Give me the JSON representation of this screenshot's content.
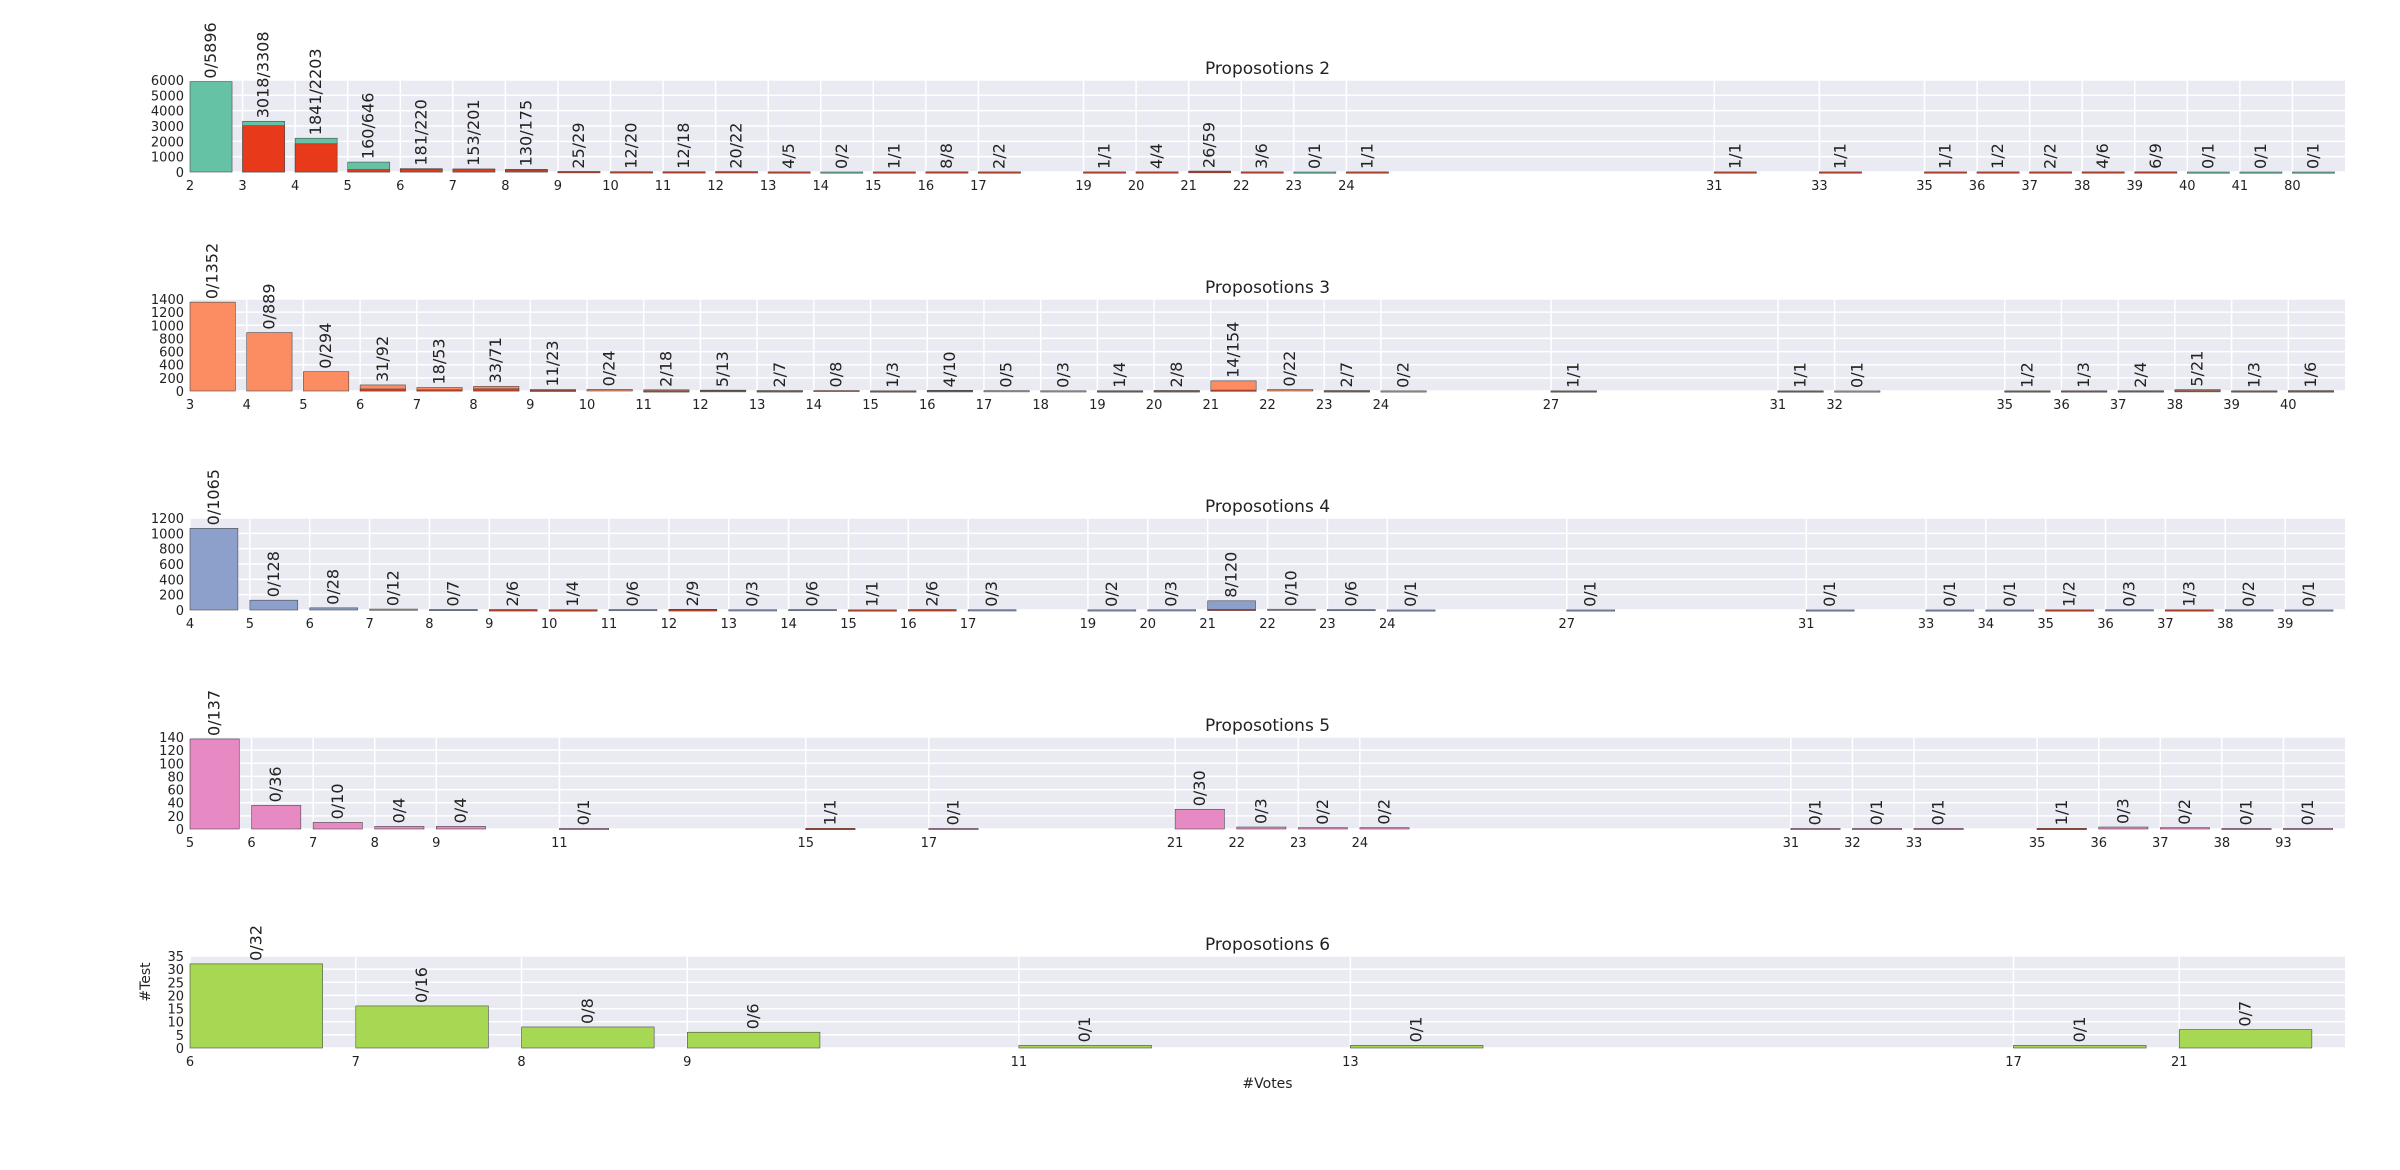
{
  "xlabel": "#Votes",
  "ylabel": "#Test",
  "chart_data": [
    {
      "type": "bar",
      "title": "Proposotions 2",
      "ylim": [
        0,
        6000
      ],
      "yticks": [
        0,
        1000,
        2000,
        3000,
        4000,
        5000,
        6000
      ],
      "grid": true,
      "color_total": "#66c2a5",
      "color_part": "#e8391a",
      "x": [
        2,
        3,
        4,
        5,
        6,
        7,
        8,
        9,
        10,
        11,
        12,
        13,
        14,
        15,
        16,
        17,
        19,
        20,
        21,
        22,
        23,
        24,
        31,
        33,
        35,
        36,
        37,
        38,
        39,
        40,
        41,
        80
      ],
      "part": [
        0,
        3018,
        1841,
        160,
        181,
        153,
        130,
        25,
        12,
        12,
        20,
        4,
        0,
        1,
        8,
        2,
        1,
        4,
        26,
        3,
        0,
        1,
        1,
        1,
        1,
        1,
        2,
        4,
        6,
        0,
        0,
        0
      ],
      "total": [
        5896,
        3308,
        2203,
        646,
        220,
        201,
        175,
        29,
        20,
        18,
        22,
        5,
        2,
        1,
        8,
        2,
        1,
        4,
        59,
        6,
        1,
        1,
        1,
        1,
        1,
        2,
        2,
        6,
        9,
        1,
        1,
        1
      ],
      "labels": [
        "0/5896",
        "3018/3308",
        "1841/2203",
        "160/646",
        "181/220",
        "153/201",
        "130/175",
        "25/29",
        "12/20",
        "12/18",
        "20/22",
        "4/5",
        "0/2",
        "1/1",
        "8/8",
        "2/2",
        "1/1",
        "4/4",
        "26/59",
        "3/6",
        "0/1",
        "1/1",
        "1/1",
        "1/1",
        "1/1",
        "1/2",
        "2/2",
        "4/6",
        "6/9",
        "0/1",
        "0/1",
        "0/1"
      ]
    },
    {
      "type": "bar",
      "title": "Proposotions 3",
      "ylim": [
        0,
        1400
      ],
      "yticks": [
        0,
        200,
        400,
        600,
        800,
        1000,
        1200,
        1400
      ],
      "grid": true,
      "color_total": "#fc8d62",
      "color_part": "#e8391a",
      "x": [
        3,
        4,
        5,
        6,
        7,
        8,
        9,
        10,
        11,
        12,
        13,
        14,
        15,
        16,
        17,
        18,
        19,
        20,
        21,
        22,
        23,
        24,
        27,
        31,
        32,
        35,
        36,
        37,
        38,
        39,
        40
      ],
      "part": [
        0,
        0,
        0,
        31,
        18,
        33,
        11,
        0,
        2,
        5,
        2,
        0,
        1,
        4,
        0,
        0,
        1,
        2,
        14,
        0,
        2,
        0,
        1,
        1,
        0,
        1,
        1,
        2,
        5,
        1,
        1
      ],
      "total": [
        1352,
        889,
        294,
        92,
        53,
        71,
        23,
        24,
        18,
        13,
        7,
        8,
        3,
        10,
        5,
        3,
        4,
        8,
        154,
        22,
        7,
        2,
        1,
        1,
        1,
        2,
        3,
        4,
        21,
        3,
        6
      ],
      "labels": [
        "0/1352",
        "0/889",
        "0/294",
        "31/92",
        "18/53",
        "33/71",
        "11/23",
        "0/24",
        "2/18",
        "5/13",
        "2/7",
        "0/8",
        "1/3",
        "4/10",
        "0/5",
        "0/3",
        "1/4",
        "2/8",
        "14/154",
        "0/22",
        "2/7",
        "0/2",
        "1/1",
        "1/1",
        "0/1",
        "1/2",
        "1/3",
        "2/4",
        "5/21",
        "1/3",
        "1/6"
      ]
    },
    {
      "type": "bar",
      "title": "Proposotions 4",
      "ylim": [
        0,
        1200
      ],
      "yticks": [
        0,
        200,
        400,
        600,
        800,
        1000,
        1200
      ],
      "grid": true,
      "color_total": "#8da0cb",
      "color_part": "#e8391a",
      "x": [
        4,
        5,
        6,
        7,
        8,
        9,
        10,
        11,
        12,
        13,
        14,
        15,
        16,
        17,
        19,
        20,
        21,
        22,
        23,
        24,
        27,
        31,
        33,
        34,
        35,
        36,
        37,
        38,
        39
      ],
      "part": [
        0,
        0,
        0,
        0,
        0,
        2,
        1,
        0,
        2,
        0,
        0,
        1,
        2,
        0,
        0,
        0,
        8,
        0,
        0,
        0,
        0,
        0,
        0,
        0,
        1,
        0,
        1,
        0,
        0
      ],
      "total": [
        1065,
        128,
        28,
        12,
        7,
        6,
        4,
        6,
        9,
        3,
        6,
        1,
        6,
        3,
        2,
        3,
        120,
        10,
        6,
        1,
        1,
        1,
        1,
        1,
        2,
        3,
        3,
        2,
        1
      ],
      "labels": [
        "0/1065",
        "0/128",
        "0/28",
        "0/12",
        "0/7",
        "2/6",
        "1/4",
        "0/6",
        "2/9",
        "0/3",
        "0/6",
        "1/1",
        "2/6",
        "0/3",
        "0/2",
        "0/3",
        "8/120",
        "0/10",
        "0/6",
        "0/1",
        "0/1",
        "0/1",
        "0/1",
        "0/1",
        "1/2",
        "0/3",
        "1/3",
        "0/2",
        "0/1"
      ]
    },
    {
      "type": "bar",
      "title": "Proposotions 5",
      "ylim": [
        0,
        140
      ],
      "yticks": [
        0,
        20,
        40,
        60,
        80,
        100,
        120,
        140
      ],
      "grid": true,
      "color_total": "#e78ac3",
      "color_part": "#e8391a",
      "x": [
        5,
        6,
        7,
        8,
        9,
        11,
        15,
        17,
        21,
        22,
        23,
        24,
        31,
        32,
        33,
        35,
        36,
        37,
        38,
        93
      ],
      "part": [
        0,
        0,
        0,
        0,
        0,
        0,
        1,
        0,
        0,
        0,
        0,
        0,
        0,
        0,
        0,
        1,
        0,
        0,
        0,
        0
      ],
      "total": [
        137,
        36,
        10,
        4,
        4,
        1,
        1,
        1,
        30,
        3,
        2,
        2,
        1,
        1,
        1,
        1,
        3,
        2,
        1,
        1
      ],
      "labels": [
        "0/137",
        "0/36",
        "0/10",
        "0/4",
        "0/4",
        "0/1",
        "1/1",
        "0/1",
        "0/30",
        "0/3",
        "0/2",
        "0/2",
        "0/1",
        "0/1",
        "0/1",
        "1/1",
        "0/3",
        "0/2",
        "0/1",
        "0/1"
      ]
    },
    {
      "type": "bar",
      "title": "Proposotions 6",
      "ylim": [
        0,
        35
      ],
      "yticks": [
        0,
        5,
        10,
        15,
        20,
        25,
        30,
        35
      ],
      "grid": true,
      "color_total": "#a6d854",
      "color_part": "#e8391a",
      "x": [
        6,
        7,
        8,
        9,
        11,
        13,
        17,
        21
      ],
      "part": [
        0,
        0,
        0,
        0,
        0,
        0,
        0,
        0
      ],
      "total": [
        32,
        16,
        8,
        6,
        1,
        1,
        1,
        7
      ],
      "labels": [
        "0/32",
        "0/16",
        "0/8",
        "0/6",
        "0/1",
        "0/1",
        "0/1",
        "0/7"
      ]
    }
  ]
}
